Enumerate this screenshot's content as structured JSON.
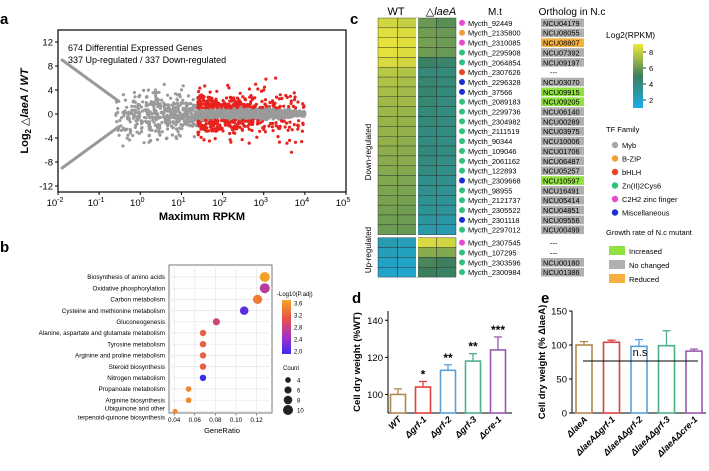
{
  "panels": {
    "a": {
      "letter": "a",
      "annotation_lines": [
        "674 Differential Expressed Genes",
        "337 Up-regulated / 337 Down-regulated"
      ],
      "xlabel": "Maximum RPKM",
      "ylabel_prefix": "Log",
      "ylabel_sub": "2",
      "ylabel_rest": " △laeA / WT",
      "yticks": [
        12,
        8,
        4,
        0,
        -4,
        -8,
        -12
      ],
      "xtick_base": "10",
      "xtick_exponents": [
        "-2",
        "-1",
        "0",
        "1",
        "2",
        "3",
        "4",
        "5"
      ],
      "threshold_x_rpkm": 25,
      "threshold_log2fc": 1
    },
    "b": {
      "letter": "b",
      "xlabel": "GeneRatio",
      "xticks": [
        "0.04",
        "0.06",
        "0.08",
        "0.10",
        "0.12"
      ],
      "colorbar_title": "-Log10(P.adj)",
      "colorbar_ticks": [
        "2.0",
        "2.4",
        "2.8",
        "3.2",
        "3.6"
      ],
      "count_title": "Count",
      "count_values": [
        "4",
        "6",
        "8",
        "10"
      ],
      "terms": [
        {
          "name": "Biosynthesis of amino acids",
          "ratio": 0.128,
          "count": 10,
          "logp": 3.75
        },
        {
          "name": "Oxidative phosphorylation",
          "ratio": 0.128,
          "count": 10,
          "logp": 2.8
        },
        {
          "name": "Carbon metabolism",
          "ratio": 0.121,
          "count": 9,
          "logp": 3.5
        },
        {
          "name": "Cysteine and methionine metabolism",
          "ratio": 0.108,
          "count": 8,
          "logp": 2.2
        },
        {
          "name": "Gluconeogenesis",
          "ratio": 0.081,
          "count": 6,
          "logp": 3.0
        },
        {
          "name": "Alanine, aspartate and glutamate metabolism",
          "ratio": 0.068,
          "count": 5,
          "logp": 3.3
        },
        {
          "name": "Tyrosine metabolism",
          "ratio": 0.068,
          "count": 5,
          "logp": 3.3
        },
        {
          "name": "Arginine and proline metabolism",
          "ratio": 0.068,
          "count": 5,
          "logp": 3.3
        },
        {
          "name": "Steroid biosynthesis",
          "ratio": 0.068,
          "count": 5,
          "logp": 3.3
        },
        {
          "name": "Nitrogen metabolism",
          "ratio": 0.068,
          "count": 5,
          "logp": 2.0
        },
        {
          "name": "Propanoate metabolism",
          "ratio": 0.054,
          "count": 4,
          "logp": 3.6
        },
        {
          "name": "Arginine biosynthesis",
          "ratio": 0.054,
          "count": 4,
          "logp": 3.6
        },
        {
          "name": "Ubiquinone and other terpenoid-quinone biosynthesis",
          "ratio": 0.041,
          "count": 3,
          "logp": 3.6
        }
      ],
      "last_term_lines": [
        "Ubiquinone and other",
        "terpenoid-quinone biosynthesis"
      ]
    },
    "c": {
      "letter": "c",
      "col_headers": [
        "WT",
        "△laeA",
        "M.t",
        "Ortholog in N.c"
      ],
      "group_labels": [
        "Down-regulated",
        "Up-regulated"
      ],
      "legend_title": "Log2(RPKM)",
      "legend_ticks": [
        "8",
        "6",
        "4",
        "2"
      ],
      "tf_title": "TF Family",
      "tf_families": [
        {
          "name": "Myb",
          "color": "#a6a6a6"
        },
        {
          "name": "B-ZIP",
          "color": "#f0a030"
        },
        {
          "name": "bHLH",
          "color": "#e84420"
        },
        {
          "name": "Zn(II)2Cys6",
          "color": "#2ec27a"
        },
        {
          "name": "C2H2 zinc finger",
          "color": "#e84ad0"
        },
        {
          "name": "Miscellaneous",
          "color": "#1a2fd6"
        }
      ],
      "growth_title": "Growth rate of N.c mutant",
      "growth_legend": [
        {
          "name": "Increased",
          "color": "#90e040"
        },
        {
          "name": "No changed",
          "color": "#b0b0b0"
        },
        {
          "name": "Reduced",
          "color": "#f5b040"
        }
      ],
      "genes": [
        {
          "id": "Mycth_92449",
          "family": "C2H2 zinc finger",
          "ortholog": "NCU04179",
          "growth": "No changed",
          "wt": [
            8.2,
            7.9
          ],
          "mut": [
            5.6,
            5.2
          ],
          "group": "down"
        },
        {
          "id": "Mycth_2135800",
          "family": "B-ZIP",
          "ortholog": "NCU08055",
          "growth": "No changed",
          "wt": [
            8.6,
            8.5
          ],
          "mut": [
            5.8,
            5.6
          ],
          "group": "down"
        },
        {
          "id": "Mycth_2310085",
          "family": "C2H2 zinc finger",
          "ortholog": "NCU08807",
          "growth": "Reduced",
          "wt": [
            8.8,
            8.6
          ],
          "mut": [
            5.9,
            5.7
          ],
          "group": "down"
        },
        {
          "id": "Mycth_2295908",
          "family": "Zn(II)2Cys6",
          "ortholog": "NCU07392",
          "growth": "No changed",
          "wt": [
            8.7,
            8.5
          ],
          "mut": [
            5.7,
            5.6
          ],
          "group": "down"
        },
        {
          "id": "Mycth_2064854",
          "family": "Zn(II)2Cys6",
          "ortholog": "NCU09197",
          "growth": "No changed",
          "wt": [
            8.4,
            8.2
          ],
          "mut": [
            4.2,
            4.0
          ],
          "group": "down"
        },
        {
          "id": "Mycth_2307626",
          "family": "bHLH",
          "ortholog": "---",
          "growth": "",
          "wt": [
            7.6,
            7.4
          ],
          "mut": [
            3.6,
            3.5
          ],
          "group": "down"
        },
        {
          "id": "Mycth_2296328",
          "family": "Miscellaneous",
          "ortholog": "NCU03070",
          "growth": "No changed",
          "wt": [
            7.4,
            7.2
          ],
          "mut": [
            3.8,
            3.6
          ],
          "group": "down"
        },
        {
          "id": "Mycth_37566",
          "family": "Miscellaneous",
          "ortholog": "NCU09915",
          "growth": "Increased",
          "wt": [
            7.2,
            7.0
          ],
          "mut": [
            3.9,
            3.5
          ],
          "group": "down"
        },
        {
          "id": "Mycth_2089183",
          "family": "Zn(II)2Cys6",
          "ortholog": "NCU09205",
          "growth": "Increased",
          "wt": [
            7.0,
            7.0
          ],
          "mut": [
            3.7,
            3.4
          ],
          "group": "down"
        },
        {
          "id": "Mycth_2299736",
          "family": "Zn(II)2Cys6",
          "ortholog": "NCU06140",
          "growth": "No changed",
          "wt": [
            6.9,
            6.8
          ],
          "mut": [
            3.5,
            3.3
          ],
          "group": "down"
        },
        {
          "id": "Mycth_2304982",
          "family": "Zn(II)2Cys6",
          "ortholog": "NCU00289",
          "growth": "No changed",
          "wt": [
            6.8,
            6.7
          ],
          "mut": [
            3.6,
            3.4
          ],
          "group": "down"
        },
        {
          "id": "Mycth_2111519",
          "family": "Zn(II)2Cys6",
          "ortholog": "NCU03975",
          "growth": "No changed",
          "wt": [
            6.7,
            6.6
          ],
          "mut": [
            3.4,
            3.3
          ],
          "group": "down"
        },
        {
          "id": "Mycth_90344",
          "family": "Zn(II)2Cys6",
          "ortholog": "NCU10006",
          "growth": "No changed",
          "wt": [
            6.6,
            6.5
          ],
          "mut": [
            3.3,
            3.2
          ],
          "group": "down"
        },
        {
          "id": "Mycth_109046",
          "family": "Zn(II)2Cys6",
          "ortholog": "NCU01706",
          "growth": "No changed",
          "wt": [
            6.5,
            6.4
          ],
          "mut": [
            3.5,
            3.3
          ],
          "group": "down"
        },
        {
          "id": "Mycth_2061162",
          "family": "Zn(II)2Cys6",
          "ortholog": "NCU06487",
          "growth": "No changed",
          "wt": [
            6.4,
            6.4
          ],
          "mut": [
            3.4,
            3.2
          ],
          "group": "down"
        },
        {
          "id": "Mycth_122893",
          "family": "Zn(II)2Cys6",
          "ortholog": "NCU05257",
          "growth": "No changed",
          "wt": [
            6.3,
            6.2
          ],
          "mut": [
            3.3,
            3.1
          ],
          "group": "down"
        },
        {
          "id": "Mycth_2309668",
          "family": "Miscellaneous",
          "ortholog": "NCU10597",
          "growth": "Increased",
          "wt": [
            6.2,
            6.1
          ],
          "mut": [
            3.0,
            2.9
          ],
          "group": "down"
        },
        {
          "id": "Mycth_98955",
          "family": "Zn(II)2Cys6",
          "ortholog": "NCU16491",
          "growth": "No changed",
          "wt": [
            6.1,
            6.0
          ],
          "mut": [
            2.9,
            2.8
          ],
          "group": "down"
        },
        {
          "id": "Mycth_2121737",
          "family": "Zn(II)2Cys6",
          "ortholog": "NCU05414",
          "growth": "No changed",
          "wt": [
            6.0,
            5.9
          ],
          "mut": [
            2.8,
            2.7
          ],
          "group": "down"
        },
        {
          "id": "Mycth_2305522",
          "family": "Zn(II)2Cys6",
          "ortholog": "NCU04851",
          "growth": "No changed",
          "wt": [
            5.9,
            5.8
          ],
          "mut": [
            2.6,
            2.5
          ],
          "group": "down"
        },
        {
          "id": "Mycth_2301118",
          "family": "Miscellaneous",
          "ortholog": "NCU09556",
          "growth": "No changed",
          "wt": [
            5.8,
            5.7
          ],
          "mut": [
            2.4,
            2.2
          ],
          "group": "down"
        },
        {
          "id": "Mycth_2297012",
          "family": "Zn(II)2Cys6",
          "ortholog": "NCU00499",
          "growth": "No changed",
          "wt": [
            5.7,
            5.6
          ],
          "mut": [
            2.0,
            1.8
          ],
          "group": "down"
        },
        {
          "id": "Mycth_2307545",
          "family": "C2H2 zinc finger",
          "ortholog": "---",
          "growth": "",
          "wt": [
            1.8,
            1.5
          ],
          "mut": [
            8.4,
            8.2
          ],
          "group": "up"
        },
        {
          "id": "Mycth_107295",
          "family": "Zn(II)2Cys6",
          "ortholog": "---",
          "growth": "",
          "wt": [
            1.5,
            1.3
          ],
          "mut": [
            6.4,
            6.2
          ],
          "group": "up"
        },
        {
          "id": "Mycth_2303596",
          "family": "Zn(II)2Cys6",
          "ortholog": "NCU00180",
          "growth": "No changed",
          "wt": [
            1.2,
            1.0
          ],
          "mut": [
            4.8,
            4.5
          ],
          "group": "up"
        },
        {
          "id": "Mycth_2300984",
          "family": "Zn(II)2Cys6",
          "ortholog": "NCU01386",
          "growth": "No changed",
          "wt": [
            1.0,
            0.9
          ],
          "mut": [
            4.5,
            4.2
          ],
          "group": "up"
        }
      ]
    },
    "d": {
      "letter": "d",
      "ylabel": "Cell dry weight  (%WT)",
      "yticks": [
        "100",
        "120",
        "140"
      ],
      "chart_data": {
        "type": "bar",
        "categories": [
          "WT",
          "Δgrf-1",
          "Δgrf-2",
          "Δgrf-3",
          "Δcre-1"
        ],
        "values": [
          100,
          104,
          113,
          118,
          124
        ],
        "errors": [
          3,
          3,
          3,
          4,
          7
        ],
        "significance": [
          "",
          "*",
          "**",
          "**",
          "***"
        ],
        "colors": [
          "#b08850",
          "#e04040",
          "#5aa0d8",
          "#4eb088",
          "#9a5ab0"
        ],
        "ylim": [
          90,
          145
        ]
      }
    },
    "e": {
      "letter": "e",
      "ylabel": "Cell dry weight (% ΔlaeA)",
      "yticks": [
        "0",
        "50",
        "100",
        "150"
      ],
      "ns_label": "n.s",
      "chart_data": {
        "type": "bar",
        "categories": [
          "ΔlaeA",
          "ΔlaeAΔgrf-1",
          "ΔlaeAΔgrf-2",
          "ΔlaeAΔgrf-3",
          "ΔlaeAΔcre-1"
        ],
        "values": [
          100,
          104,
          98,
          99,
          91
        ],
        "errors": [
          5,
          3,
          10,
          22,
          3
        ],
        "colors": [
          "#b08850",
          "#e04040",
          "#5aa0d8",
          "#4eb088",
          "#9a5ab0"
        ],
        "ylim": [
          0,
          150
        ]
      }
    }
  }
}
